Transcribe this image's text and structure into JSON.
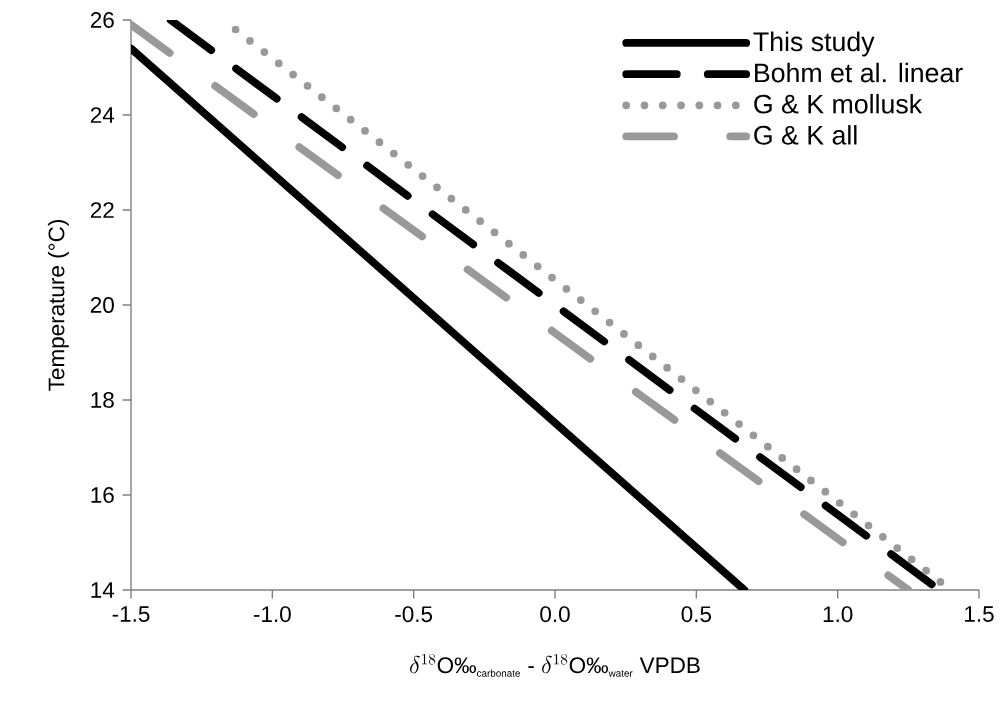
{
  "chart_data": {
    "type": "line",
    "xlabel": "\\delta^{18}\\mbox{O‰}_{\\mbox{\\scriptsize carbonate}}\\mbox{ - }\\delta^{18}\\mbox{O‰}_{\\mbox{\\scriptsize water}}\\mbox{ VPDB}",
    "ylabel": "Temperature (°C)",
    "xlim": [
      -1.5,
      1.5
    ],
    "ylim": [
      14,
      26
    ],
    "xticks": [
      {
        "value": -1.5,
        "label": "-1.5"
      },
      {
        "value": -1.0,
        "label": "-1.0"
      },
      {
        "value": -0.5,
        "label": "-0.5"
      },
      {
        "value": 0.0,
        "label": "0.0"
      },
      {
        "value": 0.5,
        "label": "0.5"
      },
      {
        "value": 1.0,
        "label": "1.0"
      },
      {
        "value": 1.5,
        "label": "1.5"
      }
    ],
    "yticks": [
      14,
      16,
      18,
      20,
      22,
      24,
      26
    ],
    "grid": false,
    "legend": "top right",
    "marker": "none",
    "series": [
      {
        "name": "This study",
        "color": "#000000",
        "line_style": "solid",
        "x": [
          -1.5,
          0.67
        ],
        "values": [
          25.4,
          14
        ]
      },
      {
        "name": "Bohm et al. linear",
        "color": "#000000",
        "line_style": "dashed",
        "x": [
          -1.36,
          1.36
        ],
        "values": [
          26,
          14
        ]
      },
      {
        "name": "G & K mollusk",
        "color": "#999999",
        "line_style": "dotted",
        "x": [
          -1.13,
          1.4
        ],
        "values": [
          25.8,
          14
        ]
      },
      {
        "name": "G & K all",
        "color": "#999999",
        "line_style": "dashdotdotted",
        "x": [
          -1.5,
          1.25
        ],
        "values": [
          25.9,
          14
        ]
      }
    ]
  }
}
